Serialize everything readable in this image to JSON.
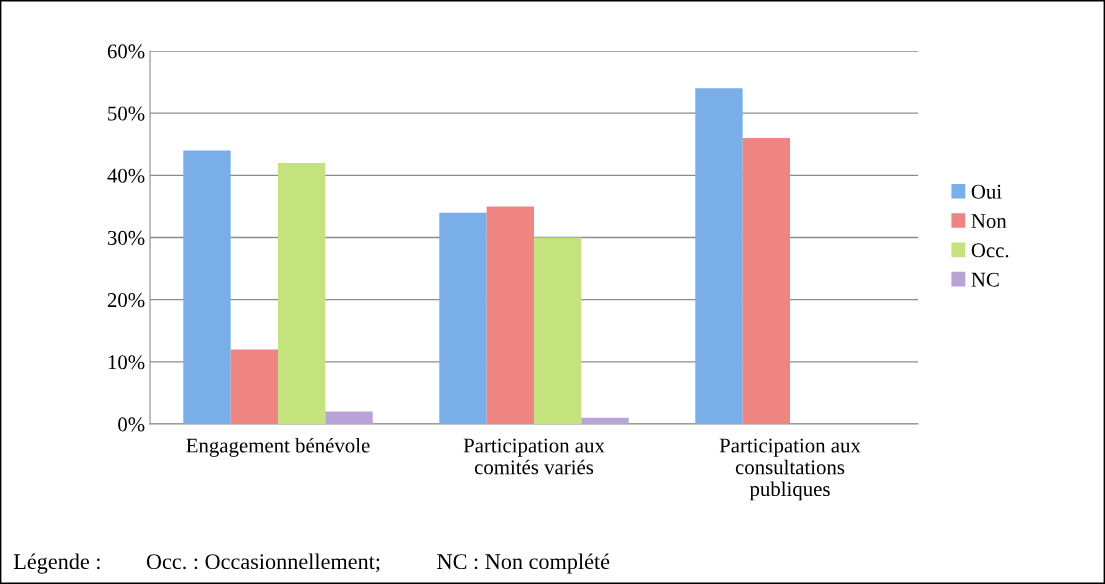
{
  "chart_data": {
    "type": "bar",
    "categories": [
      "Engagement bénévole",
      "Participation aux\ncomités variés",
      "Participation aux\nconsultations\npubliques"
    ],
    "series": [
      {
        "name": "Oui",
        "color": "#7aaee8",
        "values": [
          44,
          34,
          54
        ]
      },
      {
        "name": "Non",
        "color": "#ee8580",
        "values": [
          12,
          35,
          46
        ]
      },
      {
        "name": "Occ.",
        "color": "#c4e37c",
        "values": [
          42,
          30,
          null
        ]
      },
      {
        "name": "NC",
        "color": "#b9a3d6",
        "values": [
          2,
          1,
          null
        ]
      }
    ],
    "ylim": [
      0,
      60
    ],
    "yticks": [
      {
        "value": 0,
        "label": "0%"
      },
      {
        "value": 10,
        "label": "10%"
      },
      {
        "value": 20,
        "label": "20%"
      },
      {
        "value": 30,
        "label": "30%"
      },
      {
        "value": 40,
        "label": "40%"
      },
      {
        "value": 50,
        "label": "50%"
      },
      {
        "value": 60,
        "label": "60%"
      }
    ],
    "grid": "y",
    "legend": "right",
    "annotations": [
      "Légende :        Occ. : Occasionnellement;          NC : Non complété"
    ]
  }
}
